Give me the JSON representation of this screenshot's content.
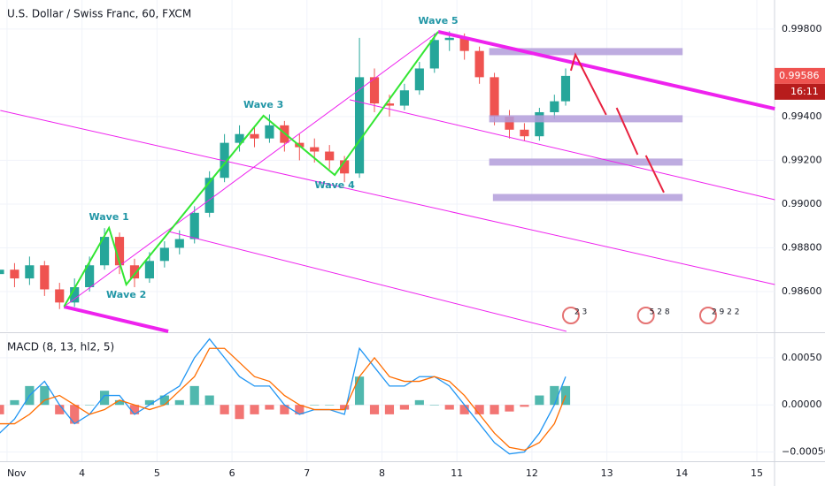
{
  "chart_data": [
    {
      "type": "candlestick",
      "title": "U.S. Dollar / Swiss Franc, 60, FXCM",
      "x": [
        -0.1,
        0.1,
        0.3,
        0.5,
        0.7,
        0.9,
        1.1,
        1.3,
        1.5,
        1.7,
        1.9,
        2.1,
        2.3,
        2.5,
        2.7,
        2.9,
        3.1,
        3.3,
        3.5,
        3.7,
        3.9,
        4.1,
        4.3,
        4.5,
        4.7,
        4.9,
        5.1,
        5.3,
        5.5,
        5.7,
        5.9,
        6.1,
        6.3,
        6.5,
        6.7,
        6.9,
        7.1,
        7.3,
        7.45
      ],
      "open": [
        0.9868,
        0.987,
        0.9866,
        0.9872,
        0.9861,
        0.9855,
        0.9862,
        0.9872,
        0.9885,
        0.9872,
        0.9866,
        0.9874,
        0.988,
        0.9884,
        0.9896,
        0.9912,
        0.9928,
        0.9932,
        0.993,
        0.9936,
        0.9928,
        0.9926,
        0.9924,
        0.992,
        0.9914,
        0.9958,
        0.9946,
        0.9945,
        0.9952,
        0.9962,
        0.9975,
        0.9976,
        0.997,
        0.9958,
        0.994,
        0.9934,
        0.9931,
        0.9942,
        0.9947
      ],
      "high": [
        0.9874,
        0.9873,
        0.9876,
        0.9874,
        0.9864,
        0.9866,
        0.9876,
        0.9889,
        0.9887,
        0.9875,
        0.9878,
        0.9883,
        0.9888,
        0.9899,
        0.9915,
        0.9932,
        0.9936,
        0.9935,
        0.9941,
        0.9938,
        0.9932,
        0.993,
        0.9927,
        0.9922,
        0.9976,
        0.9962,
        0.995,
        0.9955,
        0.9965,
        0.9978,
        0.9979,
        0.9978,
        0.9972,
        0.996,
        0.9943,
        0.9937,
        0.9944,
        0.995,
        0.9962
      ],
      "low": [
        0.9864,
        0.9862,
        0.9863,
        0.9858,
        0.9852,
        0.9853,
        0.986,
        0.987,
        0.9868,
        0.9862,
        0.9864,
        0.9871,
        0.9877,
        0.9882,
        0.9894,
        0.991,
        0.9924,
        0.9926,
        0.9928,
        0.9924,
        0.992,
        0.9919,
        0.9916,
        0.991,
        0.9912,
        0.9942,
        0.994,
        0.9943,
        0.995,
        0.996,
        0.997,
        0.9966,
        0.9955,
        0.9936,
        0.993,
        0.9929,
        0.9929,
        0.9939,
        0.9945
      ],
      "close": [
        0.987,
        0.9866,
        0.9872,
        0.9861,
        0.9855,
        0.9862,
        0.9872,
        0.9885,
        0.9872,
        0.9866,
        0.9874,
        0.988,
        0.9884,
        0.9896,
        0.9912,
        0.9928,
        0.9932,
        0.993,
        0.9936,
        0.9928,
        0.9926,
        0.9924,
        0.992,
        0.9914,
        0.9958,
        0.9946,
        0.9945,
        0.9952,
        0.9962,
        0.9975,
        0.9976,
        0.997,
        0.9958,
        0.994,
        0.9934,
        0.9931,
        0.9942,
        0.9947,
        0.99586
      ],
      "up_color": "#26a69a",
      "down_color": "#ef5350",
      "xlim": [
        -0.094,
        10.236
      ],
      "ylim": [
        0.98418,
        0.99933
      ],
      "yticks": [
        {
          "value": 0.998,
          "label": "0.99800"
        },
        {
          "value": 0.994,
          "label": "0.99400"
        },
        {
          "value": 0.992,
          "label": "0.99200"
        },
        {
          "value": 0.99,
          "label": "0.99000"
        },
        {
          "value": 0.988,
          "label": "0.98800"
        },
        {
          "value": 0.986,
          "label": "0.98600"
        }
      ],
      "grid": true,
      "last_price": {
        "value": 0.99586,
        "label": "0.99586"
      },
      "countdown": "16:11",
      "waves": {
        "color": "#33e633",
        "label_color": "#2196a6",
        "points": [
          {
            "label": null,
            "x": 0.76,
            "y": 0.98531
          },
          {
            "label": "Wave 1",
            "x": 1.36,
            "y": 0.98891
          },
          {
            "label": "Wave 2",
            "x": 1.59,
            "y": 0.98632
          },
          {
            "label": "Wave 3",
            "x": 3.42,
            "y": 0.99404
          },
          {
            "label": "Wave 4",
            "x": 4.37,
            "y": 0.99133
          },
          {
            "label": "Wave 5",
            "x": 5.75,
            "y": 0.99788
          }
        ]
      },
      "trendlines": [
        {
          "color": "#ee22ee",
          "width": 4,
          "points": [
            [
              5.75,
              0.99788
            ],
            [
              10.24,
              0.99436
            ]
          ]
        },
        {
          "color": "#ee22ee",
          "width": 1,
          "points": [
            [
              -0.09,
              0.99428
            ],
            [
              10.24,
              0.98632
            ]
          ]
        },
        {
          "color": "#ee22ee",
          "width": 1,
          "points": [
            [
              2.15,
              0.98875
            ],
            [
              7.46,
              0.98418
            ]
          ]
        },
        {
          "color": "#ee22ee",
          "width": 1,
          "points": [
            [
              4.57,
              0.99477
            ],
            [
              10.24,
              0.9902
            ]
          ]
        },
        {
          "color": "#ee22ee",
          "width": 1,
          "points": [
            [
              0.76,
              0.98531
            ],
            [
              5.75,
              0.99788
            ]
          ]
        },
        {
          "color": "#ee22ee",
          "width": 4,
          "points": [
            [
              0.76,
              0.98531
            ],
            [
              2.15,
              0.98418
            ]
          ]
        },
        {
          "color": "#e8213f",
          "width": 2,
          "points": [
            [
              7.52,
              0.9961
            ],
            [
              7.58,
              0.99683
            ],
            [
              7.99,
              0.99408
            ]
          ]
        },
        {
          "color": "#e8213f",
          "width": 2,
          "points": [
            [
              8.13,
              0.9944
            ],
            [
              8.41,
              0.99226
            ]
          ]
        },
        {
          "color": "#e8213f",
          "width": 2,
          "points": [
            [
              8.52,
              0.99222
            ],
            [
              8.76,
              0.99053
            ]
          ]
        }
      ],
      "zones": {
        "color": "#b39ddb",
        "levels": [
          {
            "price": 0.99697,
            "x": [
              6.43,
              9.01
            ]
          },
          {
            "price": 0.9939,
            "x": [
              6.43,
              9.01
            ]
          },
          {
            "price": 0.99192,
            "x": [
              6.43,
              9.01
            ]
          },
          {
            "price": 0.9903,
            "x": [
              6.48,
              9.01
            ]
          }
        ]
      },
      "events": [
        {
          "x": 7.52,
          "label": "2 3"
        },
        {
          "x": 8.52,
          "label": "5 2 8"
        },
        {
          "x": 9.35,
          "label": "2 9 2 2"
        }
      ]
    },
    {
      "type": "macd",
      "title": "MACD (8, 13, hl2, 5)",
      "x": [
        -0.1,
        0.1,
        0.3,
        0.5,
        0.7,
        0.9,
        1.1,
        1.3,
        1.5,
        1.7,
        1.9,
        2.1,
        2.3,
        2.5,
        2.7,
        2.9,
        3.1,
        3.3,
        3.5,
        3.7,
        3.9,
        4.1,
        4.3,
        4.5,
        4.7,
        4.9,
        5.1,
        5.3,
        5.5,
        5.7,
        5.9,
        6.1,
        6.3,
        6.5,
        6.7,
        6.9,
        7.1,
        7.3,
        7.45
      ],
      "histogram": {
        "up_color": "#26a69a",
        "down_color": "#ef5350",
        "values": [
          -0.0001,
          5e-05,
          0.0002,
          0.0002,
          -0.0001,
          -0.0002,
          0,
          0.00015,
          5e-05,
          -0.0001,
          5e-05,
          0.0001,
          5e-05,
          0.0002,
          0.0001,
          -0.0001,
          -0.00015,
          -0.0001,
          -5e-05,
          -0.0001,
          -0.0001,
          0,
          0,
          -5e-05,
          0.0003,
          -0.0001,
          -0.0001,
          -5e-05,
          5e-05,
          0,
          -5e-05,
          -0.0001,
          -0.0001,
          -0.0001,
          -7e-05,
          -2e-05,
          0.0001,
          0.0002,
          0.0002
        ]
      },
      "series": [
        {
          "color": "#2196f3",
          "values": [
            -0.0003,
            -0.00015,
            0.0001,
            0.00025,
            0,
            -0.0002,
            -0.0001,
            0.0001,
            0.0001,
            -0.0001,
            0,
            0.0001,
            0.0002,
            0.0005,
            0.0007,
            0.0005,
            0.0003,
            0.0002,
            0.0002,
            0,
            -0.0001,
            -5e-05,
            -5e-05,
            -0.0001,
            0.0006,
            0.0004,
            0.0002,
            0.0002,
            0.0003,
            0.0003,
            0.0002,
            0,
            -0.0002,
            -0.0004,
            -0.00052,
            -0.0005,
            -0.0003,
            0,
            0.0003
          ]
        },
        {
          "color": "#ff6d00",
          "values": [
            -0.0002,
            -0.0002,
            -0.0001,
            5e-05,
            0.0001,
            0,
            -0.0001,
            -5e-05,
            5e-05,
            0,
            -5e-05,
            0,
            0.00015,
            0.0003,
            0.0006,
            0.0006,
            0.00045,
            0.0003,
            0.00025,
            0.0001,
            0,
            -5e-05,
            -5e-05,
            -5e-05,
            0.0003,
            0.0005,
            0.0003,
            0.00025,
            0.00025,
            0.0003,
            0.00025,
            0.0001,
            -0.0001,
            -0.0003,
            -0.00045,
            -0.00048,
            -0.0004,
            -0.0002,
            0.0001
          ]
        }
      ],
      "xlim": [
        -0.094,
        10.236
      ],
      "ylim": [
        -0.000598,
        0.000752
      ],
      "yticks": [
        {
          "value": 0.0005,
          "label": "0.00050"
        },
        {
          "value": 0,
          "label": "0.00000"
        },
        {
          "value": -0.0005,
          "label": "−0.00050"
        }
      ],
      "xticks": [
        {
          "value": 0,
          "label": "Nov"
        },
        {
          "value": 1,
          "label": "4"
        },
        {
          "value": 2,
          "label": "5"
        },
        {
          "value": 3,
          "label": "6"
        },
        {
          "value": 4,
          "label": "7"
        },
        {
          "value": 5,
          "label": "8"
        },
        {
          "value": 6,
          "label": "11"
        },
        {
          "value": 7,
          "label": "12"
        },
        {
          "value": 8,
          "label": "13"
        },
        {
          "value": 9,
          "label": "14"
        },
        {
          "value": 10,
          "label": "15"
        }
      ],
      "grid": true
    }
  ]
}
